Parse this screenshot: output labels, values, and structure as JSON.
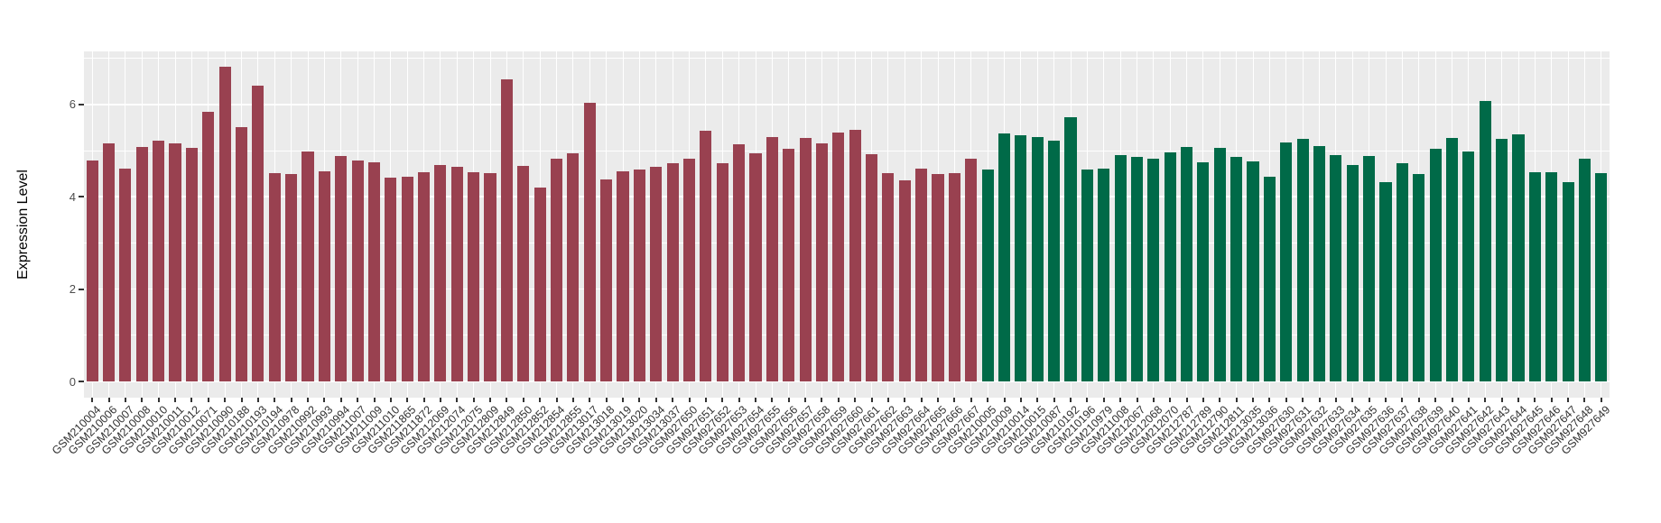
{
  "chart_data": {
    "type": "bar",
    "title": "",
    "xlabel": "",
    "ylabel": "Expression Level",
    "ylim": [
      0,
      7.15
    ],
    "yticks": [
      0,
      2,
      4,
      6
    ],
    "yticks_minor": [
      1,
      3,
      5,
      7
    ],
    "grid": "on",
    "legend": "none",
    "colors": {
      "group_red": "#994150",
      "group_green": "#006A48",
      "panel_background": "#EBEBEB",
      "gridline": "#FFFFFF",
      "tick_mark": "#333333",
      "axis_text": "#4D4D4D"
    },
    "bars": [
      {
        "label": "GSM210004",
        "value": 4.78,
        "group": "red"
      },
      {
        "label": "GSM210006",
        "value": 5.15,
        "group": "red"
      },
      {
        "label": "GSM210007",
        "value": 4.61,
        "group": "red"
      },
      {
        "label": "GSM210008",
        "value": 5.07,
        "group": "red"
      },
      {
        "label": "GSM210010",
        "value": 5.21,
        "group": "red"
      },
      {
        "label": "GSM210011",
        "value": 5.16,
        "group": "red"
      },
      {
        "label": "GSM210012",
        "value": 5.06,
        "group": "red"
      },
      {
        "label": "GSM210071",
        "value": 5.84,
        "group": "red"
      },
      {
        "label": "GSM210090",
        "value": 6.81,
        "group": "red"
      },
      {
        "label": "GSM210188",
        "value": 5.5,
        "group": "red"
      },
      {
        "label": "GSM210193",
        "value": 6.41,
        "group": "red"
      },
      {
        "label": "GSM210194",
        "value": 4.51,
        "group": "red"
      },
      {
        "label": "GSM210978",
        "value": 4.5,
        "group": "red"
      },
      {
        "label": "GSM210992",
        "value": 4.98,
        "group": "red"
      },
      {
        "label": "GSM210993",
        "value": 4.56,
        "group": "red"
      },
      {
        "label": "GSM210994",
        "value": 4.89,
        "group": "red"
      },
      {
        "label": "GSM211007",
        "value": 4.78,
        "group": "red"
      },
      {
        "label": "GSM211009",
        "value": 4.74,
        "group": "red"
      },
      {
        "label": "GSM211010",
        "value": 4.41,
        "group": "red"
      },
      {
        "label": "GSM211865",
        "value": 4.44,
        "group": "red"
      },
      {
        "label": "GSM211872",
        "value": 4.54,
        "group": "red"
      },
      {
        "label": "GSM212069",
        "value": 4.68,
        "group": "red"
      },
      {
        "label": "GSM212074",
        "value": 4.65,
        "group": "red"
      },
      {
        "label": "GSM212075",
        "value": 4.53,
        "group": "red"
      },
      {
        "label": "GSM212809",
        "value": 4.51,
        "group": "red"
      },
      {
        "label": "GSM212849",
        "value": 6.55,
        "group": "red"
      },
      {
        "label": "GSM212850",
        "value": 4.66,
        "group": "red"
      },
      {
        "label": "GSM212852",
        "value": 4.2,
        "group": "red"
      },
      {
        "label": "GSM212854",
        "value": 4.82,
        "group": "red"
      },
      {
        "label": "GSM212855",
        "value": 4.94,
        "group": "red"
      },
      {
        "label": "GSM213017",
        "value": 6.03,
        "group": "red"
      },
      {
        "label": "GSM213018",
        "value": 4.37,
        "group": "red"
      },
      {
        "label": "GSM213019",
        "value": 4.56,
        "group": "red"
      },
      {
        "label": "GSM213020",
        "value": 4.59,
        "group": "red"
      },
      {
        "label": "GSM213034",
        "value": 4.64,
        "group": "red"
      },
      {
        "label": "GSM213037",
        "value": 4.72,
        "group": "red"
      },
      {
        "label": "GSM927650",
        "value": 4.82,
        "group": "red"
      },
      {
        "label": "GSM927651",
        "value": 5.43,
        "group": "red"
      },
      {
        "label": "GSM927652",
        "value": 4.72,
        "group": "red"
      },
      {
        "label": "GSM927653",
        "value": 5.13,
        "group": "red"
      },
      {
        "label": "GSM927654",
        "value": 4.95,
        "group": "red"
      },
      {
        "label": "GSM927655",
        "value": 5.3,
        "group": "red"
      },
      {
        "label": "GSM927656",
        "value": 5.04,
        "group": "red"
      },
      {
        "label": "GSM927657",
        "value": 5.27,
        "group": "red"
      },
      {
        "label": "GSM927658",
        "value": 5.15,
        "group": "red"
      },
      {
        "label": "GSM927659",
        "value": 5.39,
        "group": "red"
      },
      {
        "label": "GSM927660",
        "value": 5.45,
        "group": "red"
      },
      {
        "label": "GSM927661",
        "value": 4.93,
        "group": "red"
      },
      {
        "label": "GSM927662",
        "value": 4.51,
        "group": "red"
      },
      {
        "label": "GSM927663",
        "value": 4.36,
        "group": "red"
      },
      {
        "label": "GSM927664",
        "value": 4.61,
        "group": "red"
      },
      {
        "label": "GSM927665",
        "value": 4.49,
        "group": "red"
      },
      {
        "label": "GSM927666",
        "value": 4.52,
        "group": "red"
      },
      {
        "label": "GSM927667",
        "value": 4.83,
        "group": "red"
      },
      {
        "label": "GSM210005",
        "value": 4.59,
        "group": "green"
      },
      {
        "label": "GSM210009",
        "value": 5.37,
        "group": "green"
      },
      {
        "label": "GSM210014",
        "value": 5.33,
        "group": "green"
      },
      {
        "label": "GSM210015",
        "value": 5.3,
        "group": "green"
      },
      {
        "label": "GSM210087",
        "value": 5.22,
        "group": "green"
      },
      {
        "label": "GSM210192",
        "value": 5.73,
        "group": "green"
      },
      {
        "label": "GSM210196",
        "value": 4.6,
        "group": "green"
      },
      {
        "label": "GSM210979",
        "value": 4.61,
        "group": "green"
      },
      {
        "label": "GSM211008",
        "value": 4.91,
        "group": "green"
      },
      {
        "label": "GSM212067",
        "value": 4.87,
        "group": "green"
      },
      {
        "label": "GSM212068",
        "value": 4.83,
        "group": "green"
      },
      {
        "label": "GSM212070",
        "value": 4.96,
        "group": "green"
      },
      {
        "label": "GSM212787",
        "value": 5.08,
        "group": "green"
      },
      {
        "label": "GSM212789",
        "value": 4.75,
        "group": "green"
      },
      {
        "label": "GSM212790",
        "value": 5.05,
        "group": "green"
      },
      {
        "label": "GSM212811",
        "value": 4.87,
        "group": "green"
      },
      {
        "label": "GSM213035",
        "value": 4.76,
        "group": "green"
      },
      {
        "label": "GSM213036",
        "value": 4.43,
        "group": "green"
      },
      {
        "label": "GSM927630",
        "value": 5.17,
        "group": "green"
      },
      {
        "label": "GSM927631",
        "value": 5.26,
        "group": "green"
      },
      {
        "label": "GSM927632",
        "value": 5.09,
        "group": "green"
      },
      {
        "label": "GSM927633",
        "value": 4.9,
        "group": "green"
      },
      {
        "label": "GSM927634",
        "value": 4.69,
        "group": "green"
      },
      {
        "label": "GSM927635",
        "value": 4.89,
        "group": "green"
      },
      {
        "label": "GSM927636",
        "value": 4.32,
        "group": "green"
      },
      {
        "label": "GSM927637",
        "value": 4.72,
        "group": "green"
      },
      {
        "label": "GSM927638",
        "value": 4.49,
        "group": "green"
      },
      {
        "label": "GSM927639",
        "value": 5.04,
        "group": "green"
      },
      {
        "label": "GSM927640",
        "value": 5.28,
        "group": "green"
      },
      {
        "label": "GSM927641",
        "value": 4.98,
        "group": "green"
      },
      {
        "label": "GSM927642",
        "value": 6.08,
        "group": "green"
      },
      {
        "label": "GSM927643",
        "value": 5.25,
        "group": "green"
      },
      {
        "label": "GSM927644",
        "value": 5.35,
        "group": "green"
      },
      {
        "label": "GSM927645",
        "value": 4.53,
        "group": "green"
      },
      {
        "label": "GSM927646",
        "value": 4.53,
        "group": "green"
      },
      {
        "label": "GSM927647",
        "value": 4.32,
        "group": "green"
      },
      {
        "label": "GSM927648",
        "value": 4.82,
        "group": "green"
      },
      {
        "label": "GSM927649",
        "value": 4.51,
        "group": "green"
      }
    ]
  }
}
